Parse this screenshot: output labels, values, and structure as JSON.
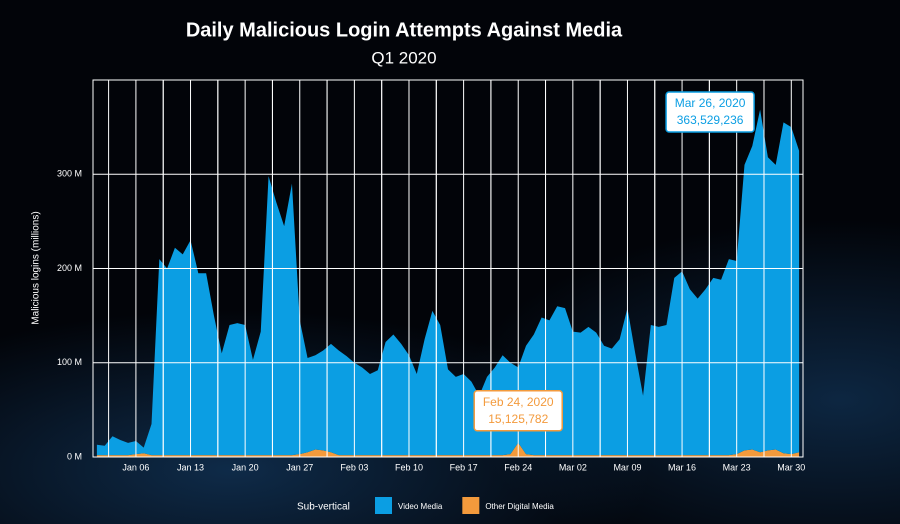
{
  "chart_data": {
    "type": "stacked_area",
    "title": "Daily Malicious Login Attempts Against Media",
    "subtitle": "Q1 2020",
    "y_label": "Malicious logins (millions)",
    "legend_title": "Sub-vertical",
    "categories": [
      null,
      null,
      null,
      null,
      null,
      "Jan 06",
      null,
      null,
      null,
      null,
      null,
      null,
      "Jan 13",
      null,
      null,
      null,
      null,
      null,
      null,
      "Jan 20",
      null,
      null,
      null,
      null,
      null,
      null,
      "Jan 27",
      null,
      null,
      null,
      null,
      null,
      null,
      "Feb 03",
      null,
      null,
      null,
      null,
      null,
      null,
      "Feb 10",
      null,
      null,
      null,
      null,
      null,
      null,
      "Feb 17",
      null,
      null,
      null,
      null,
      null,
      null,
      "Feb 24",
      null,
      null,
      null,
      null,
      null,
      null,
      "Mar 02",
      null,
      null,
      null,
      null,
      null,
      null,
      "Mar 09",
      null,
      null,
      null,
      null,
      null,
      null,
      "Mar 16",
      null,
      null,
      null,
      null,
      null,
      null,
      "Mar 23",
      null,
      null,
      null,
      null,
      null,
      null,
      "Mar 30",
      null
    ],
    "series": [
      {
        "name": "Video Media",
        "color": "#0b9ee3",
        "values": [
          11,
          10,
          20,
          16,
          13,
          14,
          6,
          33,
          208,
          198,
          220,
          213,
          228,
          193,
          193,
          148,
          108,
          138,
          140,
          138,
          101,
          131,
          296,
          268,
          243,
          288,
          142,
          100,
          100,
          106,
          115,
          111,
          105,
          98,
          93,
          86,
          90,
          120,
          128,
          118,
          106,
          86,
          123,
          153,
          138,
          91,
          83,
          86,
          78,
          63,
          83,
          93,
          106,
          97,
          80,
          115,
          128,
          146,
          143,
          158,
          156,
          131,
          130,
          136,
          130,
          116,
          113,
          123,
          156,
          108,
          63,
          138,
          136,
          138,
          188,
          195,
          176,
          166,
          176,
          188,
          186,
          208,
          205,
          303,
          322,
          363.529236,
          311,
          302,
          351,
          347,
          320
        ],
        "value_labels": [
          null,
          null,
          null,
          null,
          null,
          null,
          null,
          null,
          null,
          null,
          null,
          null,
          null,
          null,
          null,
          null,
          null,
          null,
          null,
          null,
          null,
          null,
          null,
          null,
          null,
          null,
          null,
          null,
          null,
          null,
          null,
          null,
          null,
          null,
          null,
          null,
          null,
          null,
          null,
          null,
          null,
          null,
          null,
          null,
          null,
          null,
          null,
          null,
          null,
          null,
          null,
          null,
          null,
          null,
          null,
          null,
          null,
          null,
          null,
          null,
          null,
          null,
          null,
          null,
          null,
          null,
          null,
          null,
          null,
          null,
          null,
          null,
          null,
          null,
          null,
          null,
          null,
          null,
          null,
          null,
          null,
          null,
          null,
          null,
          null,
          "363,529,236",
          null,
          null,
          null,
          null,
          null
        ],
        "callout_titles": [
          null,
          null,
          null,
          null,
          null,
          null,
          null,
          null,
          null,
          null,
          null,
          null,
          null,
          null,
          null,
          null,
          null,
          null,
          null,
          null,
          null,
          null,
          null,
          null,
          null,
          null,
          null,
          null,
          null,
          null,
          null,
          null,
          null,
          null,
          null,
          null,
          null,
          null,
          null,
          null,
          null,
          null,
          null,
          null,
          null,
          null,
          null,
          null,
          null,
          null,
          null,
          null,
          null,
          null,
          null,
          null,
          null,
          null,
          null,
          null,
          null,
          null,
          null,
          null,
          null,
          null,
          null,
          null,
          null,
          null,
          null,
          null,
          null,
          null,
          null,
          null,
          null,
          null,
          null,
          null,
          null,
          null,
          null,
          null,
          null,
          "Mar 26, 2020",
          null,
          null,
          null,
          null,
          null
        ]
      },
      {
        "name": "Other Digital Media",
        "color": "#f39a3c",
        "values": [
          2,
          2,
          2,
          2,
          2,
          3,
          4,
          2,
          2,
          2,
          2,
          2,
          2,
          2,
          2,
          2,
          2,
          2,
          2,
          2,
          2,
          2,
          2,
          2,
          2,
          2,
          3,
          5,
          8,
          7,
          5,
          2,
          2,
          2,
          2,
          2,
          2,
          2,
          2,
          2,
          2,
          2,
          2,
          2,
          2,
          2,
          2,
          2,
          2,
          2,
          2,
          2,
          2,
          3,
          15.125782,
          3,
          2,
          2,
          2,
          2,
          2,
          2,
          2,
          2,
          2,
          2,
          2,
          2,
          2,
          2,
          2,
          2,
          2,
          2,
          2,
          2,
          2,
          2,
          2,
          2,
          2,
          2,
          3,
          7,
          8,
          5,
          7,
          8,
          4,
          3,
          5
        ],
        "value_labels": [
          null,
          null,
          null,
          null,
          null,
          null,
          null,
          null,
          null,
          null,
          null,
          null,
          null,
          null,
          null,
          null,
          null,
          null,
          null,
          null,
          null,
          null,
          null,
          null,
          null,
          null,
          null,
          null,
          null,
          null,
          null,
          null,
          null,
          null,
          null,
          null,
          null,
          null,
          null,
          null,
          null,
          null,
          null,
          null,
          null,
          null,
          null,
          null,
          null,
          null,
          null,
          null,
          null,
          null,
          "15,125,782",
          null,
          null,
          null,
          null,
          null,
          null,
          null,
          null,
          null,
          null,
          null,
          null,
          null,
          null,
          null,
          null,
          null,
          null,
          null,
          null,
          null,
          null,
          null,
          null,
          null,
          null,
          null,
          null,
          null,
          null,
          null,
          null,
          null,
          null,
          null,
          null
        ],
        "callout_titles": [
          null,
          null,
          null,
          null,
          null,
          null,
          null,
          null,
          null,
          null,
          null,
          null,
          null,
          null,
          null,
          null,
          null,
          null,
          null,
          null,
          null,
          null,
          null,
          null,
          null,
          null,
          null,
          null,
          null,
          null,
          null,
          null,
          null,
          null,
          null,
          null,
          null,
          null,
          null,
          null,
          null,
          null,
          null,
          null,
          null,
          null,
          null,
          null,
          null,
          null,
          null,
          null,
          null,
          null,
          "Feb 24, 2020",
          null,
          null,
          null,
          null,
          null,
          null,
          null,
          null,
          null,
          null,
          null,
          null,
          null,
          null,
          null,
          null,
          null,
          null,
          null,
          null,
          null,
          null,
          null,
          null,
          null,
          null,
          null,
          null,
          null,
          null,
          null,
          null,
          null,
          null,
          null,
          null
        ]
      }
    ],
    "ylim": [
      0,
      400
    ],
    "yticks": [
      {
        "value": 0,
        "label": "0 M"
      },
      {
        "value": 100,
        "label": "100 M"
      },
      {
        "value": 200,
        "label": "200 M"
      },
      {
        "value": 300,
        "label": "300 M"
      }
    ],
    "grid": true
  }
}
